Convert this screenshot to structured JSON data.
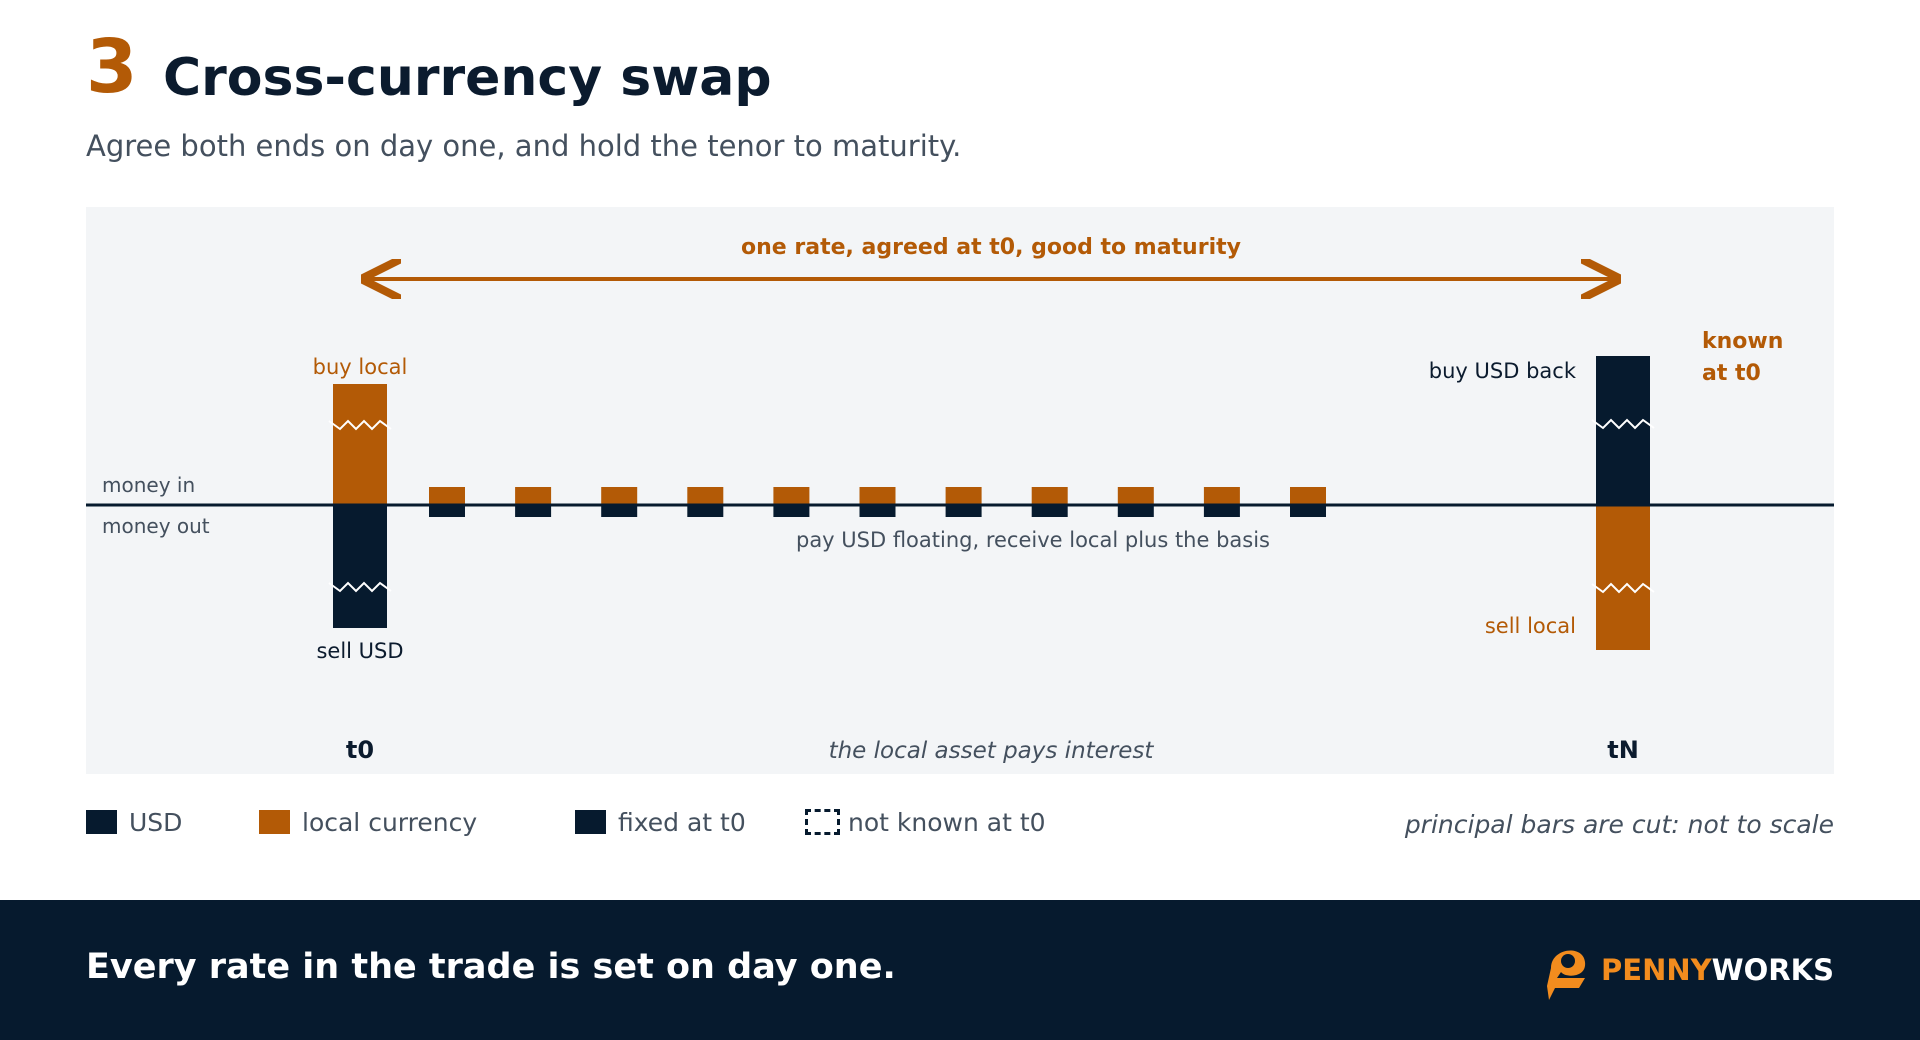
{
  "header": {
    "number": "3",
    "title": "Cross-currency swap",
    "subtitle": "Agree both ends on day one, and hold the tenor to maturity."
  },
  "diagram": {
    "rate_arrow_label": "one rate, agreed at t0, good to maturity",
    "money_in_label": "money in",
    "money_out_label": "money out",
    "t0": {
      "label": "t0",
      "top_bar": {
        "label": "buy local",
        "currency": "local currency"
      },
      "bottom_bar": {
        "label": "sell USD",
        "currency": "USD"
      }
    },
    "tN": {
      "label": "tN",
      "top_bar": {
        "label": "buy USD back",
        "currency": "USD"
      },
      "bottom_bar": {
        "label": "sell local",
        "currency": "local currency"
      },
      "note": [
        "known",
        "at t0"
      ]
    },
    "coupons": {
      "count": 11,
      "label": "pay USD floating, receive local plus the basis"
    },
    "bottom_caption": "the local asset pays interest"
  },
  "legend": {
    "items": [
      {
        "label": "USD",
        "style": "usd"
      },
      {
        "label": "local currency",
        "style": "local"
      },
      {
        "label": "fixed at t0",
        "style": "fixed"
      },
      {
        "label": "not known at t0",
        "style": "unknown"
      }
    ],
    "note": "principal bars are cut: not to scale"
  },
  "footer": {
    "text": "Every rate in the trade is set on day one.",
    "brand_part1": "PENNY",
    "brand_part2": "WORKS"
  },
  "colors": {
    "usd": "#061a2e",
    "local": "#b35a06",
    "panel_bg": "#f3f5f7",
    "footer_bg": "#061a2e",
    "brand_accent": "#f28c1e"
  }
}
